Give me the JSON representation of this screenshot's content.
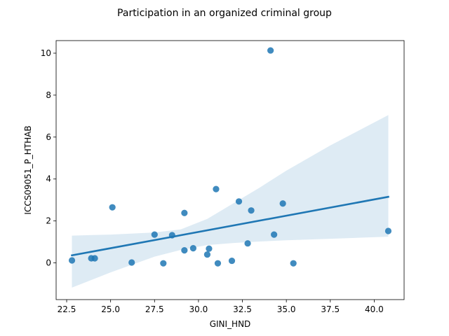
{
  "chart_data": {
    "type": "scatter",
    "title": "Participation in an organized criminal group",
    "xlabel": "GINI_HND",
    "ylabel": "ICCS09051_P_HTHAB",
    "xlim": [
      21.9,
      41.7
    ],
    "ylim": [
      -1.75,
      10.6
    ],
    "xticks": [
      22.5,
      25.0,
      27.5,
      30.0,
      32.5,
      35.0,
      37.5,
      40.0
    ],
    "xtick_labels": [
      "22.5",
      "25.0",
      "27.5",
      "30.0",
      "32.5",
      "35.0",
      "37.5",
      "40.0"
    ],
    "yticks": [
      0,
      2,
      4,
      6,
      8,
      10
    ],
    "ytick_labels": [
      "0",
      "2",
      "4",
      "6",
      "8",
      "10"
    ],
    "grid": false,
    "points": [
      {
        "x": 22.8,
        "y": 0.12
      },
      {
        "x": 23.9,
        "y": 0.22
      },
      {
        "x": 24.1,
        "y": 0.22
      },
      {
        "x": 25.1,
        "y": 2.65
      },
      {
        "x": 26.2,
        "y": 0.02
      },
      {
        "x": 27.5,
        "y": 1.35
      },
      {
        "x": 28.0,
        "y": -0.02
      },
      {
        "x": 28.5,
        "y": 1.32
      },
      {
        "x": 29.2,
        "y": 2.38
      },
      {
        "x": 29.2,
        "y": 0.6
      },
      {
        "x": 29.7,
        "y": 0.7
      },
      {
        "x": 30.5,
        "y": 0.4
      },
      {
        "x": 30.6,
        "y": 0.68
      },
      {
        "x": 31.0,
        "y": 3.52
      },
      {
        "x": 31.1,
        "y": -0.02
      },
      {
        "x": 31.9,
        "y": 0.1
      },
      {
        "x": 32.3,
        "y": 2.93
      },
      {
        "x": 32.8,
        "y": 0.93
      },
      {
        "x": 33.0,
        "y": 2.5
      },
      {
        "x": 34.1,
        "y": 10.13
      },
      {
        "x": 34.3,
        "y": 1.35
      },
      {
        "x": 34.8,
        "y": 2.83
      },
      {
        "x": 35.4,
        "y": -0.02
      },
      {
        "x": 40.8,
        "y": 1.52
      }
    ],
    "regression_line": {
      "x": [
        22.8,
        40.8
      ],
      "y": [
        0.36,
        3.15
      ]
    },
    "confidence_band": {
      "x": [
        22.8,
        25.0,
        27.5,
        29.0,
        30.5,
        32.0,
        33.5,
        35.0,
        37.5,
        40.8
      ],
      "lower": [
        -1.18,
        -0.45,
        0.3,
        0.62,
        0.85,
        0.95,
        1.02,
        1.08,
        1.15,
        1.25
      ],
      "upper": [
        1.3,
        1.35,
        1.45,
        1.6,
        2.1,
        2.85,
        3.6,
        4.4,
        5.6,
        7.05
      ]
    },
    "colors": {
      "points": "#1f77b4",
      "line": "#1f77b4",
      "band": "#1f77b4"
    }
  }
}
